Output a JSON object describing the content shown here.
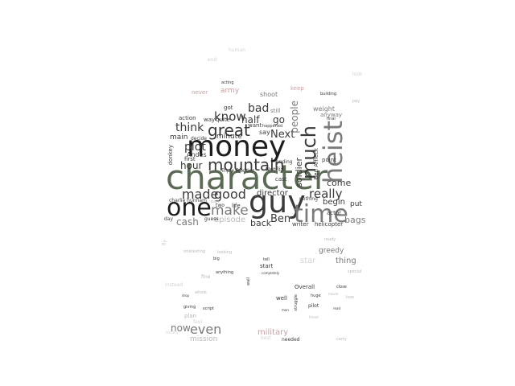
{
  "palette": {
    "darkest": "#1c1c1c",
    "dark": "#3a3a3a",
    "mid_green": "#5a6a55",
    "gray": "#7a7a7a",
    "light": "#b8b8b8",
    "pale": "#d4d0d0",
    "pink": "#c8a0a0"
  },
  "words": [
    {
      "text": "money",
      "tone": "darkest"
    },
    {
      "text": "character",
      "tone": "mid_green"
    },
    {
      "text": "guy",
      "tone": "dark"
    },
    {
      "text": "one",
      "tone": "darkest"
    },
    {
      "text": "time",
      "tone": "gray"
    },
    {
      "text": "heist",
      "tone": "gray"
    },
    {
      "text": "much",
      "tone": "dark"
    },
    {
      "text": "mountain",
      "tone": "dark"
    },
    {
      "text": "great",
      "tone": "dark"
    },
    {
      "text": "make",
      "tone": "gray"
    },
    {
      "text": "made",
      "tone": "dark"
    },
    {
      "text": "good",
      "tone": "dark"
    },
    {
      "text": "really",
      "tone": "dark"
    },
    {
      "text": "know",
      "tone": "dark"
    },
    {
      "text": "think",
      "tone": "dark"
    },
    {
      "text": "plot",
      "tone": "dark"
    },
    {
      "text": "bad",
      "tone": "dark"
    },
    {
      "text": "Next",
      "tone": "dark"
    },
    {
      "text": "half",
      "tone": "dark"
    },
    {
      "text": "go",
      "tone": "dark"
    },
    {
      "text": "people",
      "tone": "gray"
    },
    {
      "text": "soldier",
      "tone": "dark"
    },
    {
      "text": "hour",
      "tone": "dark"
    },
    {
      "text": "director",
      "tone": "dark"
    },
    {
      "text": "Ben",
      "tone": "dark"
    },
    {
      "text": "cash",
      "tone": "gray"
    },
    {
      "text": "episode",
      "tone": "light"
    },
    {
      "text": "back",
      "tone": "dark"
    },
    {
      "text": "bags",
      "tone": "gray"
    },
    {
      "text": "come",
      "tone": "dark"
    },
    {
      "text": "begin",
      "tone": "dark"
    },
    {
      "text": "put",
      "tone": "dark"
    },
    {
      "text": "even",
      "tone": "gray"
    },
    {
      "text": "now",
      "tone": "gray"
    },
    {
      "text": "mission",
      "tone": "light"
    },
    {
      "text": "thing",
      "tone": "gray"
    },
    {
      "text": "star",
      "tone": "pale"
    },
    {
      "text": "greedy",
      "tone": "gray"
    },
    {
      "text": "military",
      "tone": "pink"
    },
    {
      "text": "army",
      "tone": "pink"
    },
    {
      "text": "shoot",
      "tone": "gray"
    },
    {
      "text": "weight",
      "tone": "gray"
    },
    {
      "text": "anyway",
      "tone": "gray"
    },
    {
      "text": "main",
      "tone": "dark"
    },
    {
      "text": "minute",
      "tone": "dark"
    },
    {
      "text": "Andes",
      "tone": "dark"
    },
    {
      "text": "action",
      "tone": "dark"
    },
    {
      "text": "way",
      "tone": "dark"
    },
    {
      "text": "quite",
      "tone": "dark"
    },
    {
      "text": "want",
      "tone": "dark"
    },
    {
      "text": "say",
      "tone": "dark"
    },
    {
      "text": "still",
      "tone": "gray"
    },
    {
      "text": "got",
      "tone": "dark"
    },
    {
      "text": "first",
      "tone": "dark"
    },
    {
      "text": "decide",
      "tone": "dark"
    },
    {
      "text": "donkey",
      "tone": "dark"
    },
    {
      "text": "charlie hunnam",
      "tone": "dark"
    },
    {
      "text": "life",
      "tone": "dark"
    },
    {
      "text": "two",
      "tone": "dark"
    },
    {
      "text": "day",
      "tone": "dark"
    },
    {
      "text": "guess",
      "tone": "dark"
    },
    {
      "text": "actor",
      "tone": "dark"
    },
    {
      "text": "nothing",
      "tone": "dark"
    },
    {
      "text": "writer",
      "tone": "dark"
    },
    {
      "text": "helicopter",
      "tone": "dark"
    },
    {
      "text": "Netflix",
      "tone": "dark"
    },
    {
      "text": "ending",
      "tone": "dark"
    },
    {
      "text": "cast",
      "tone": "dark"
    },
    {
      "text": "Triple Frontier",
      "tone": "dark"
    },
    {
      "text": "point",
      "tone": "dark"
    },
    {
      "text": "Ben Affleck",
      "tone": "dark"
    },
    {
      "text": "Overall",
      "tone": "dark"
    },
    {
      "text": "start",
      "tone": "dark"
    },
    {
      "text": "well",
      "tone": "dark"
    },
    {
      "text": "pilot",
      "tone": "dark"
    },
    {
      "text": "plan",
      "tone": "light"
    },
    {
      "text": "keep",
      "tone": "pink"
    },
    {
      "text": "never",
      "tone": "pink"
    },
    {
      "text": "acting",
      "tone": "dark"
    },
    {
      "text": "building",
      "tone": "dark"
    },
    {
      "text": "happened",
      "tone": "dark"
    },
    {
      "text": "final",
      "tone": "dark"
    },
    {
      "text": "part",
      "tone": "light"
    },
    {
      "text": "look",
      "tone": "pale"
    },
    {
      "text": "human",
      "tone": "pale"
    },
    {
      "text": "end",
      "tone": "pale"
    },
    {
      "text": "fly",
      "tone": "pale"
    },
    {
      "text": "instead",
      "tone": "pale"
    },
    {
      "text": "feel",
      "tone": "pale"
    },
    {
      "text": "totally",
      "tone": "pale"
    },
    {
      "text": "needed",
      "tone": "dark"
    },
    {
      "text": "best",
      "tone": "pale"
    },
    {
      "text": "interesting",
      "tone": "light"
    },
    {
      "text": "looking",
      "tone": "light"
    },
    {
      "text": "big",
      "tone": "dark"
    },
    {
      "text": "anything",
      "tone": "dark"
    },
    {
      "text": "wall",
      "tone": "dark"
    },
    {
      "text": "tell",
      "tone": "dark"
    },
    {
      "text": "completely",
      "tone": "dark"
    },
    {
      "text": "giving",
      "tone": "dark"
    },
    {
      "text": "script",
      "tone": "dark"
    },
    {
      "text": "drop",
      "tone": "dark"
    },
    {
      "text": "whole",
      "tone": "light"
    },
    {
      "text": "close",
      "tone": "dark"
    },
    {
      "text": "read",
      "tone": "dark"
    },
    {
      "text": "man",
      "tone": "dark"
    },
    {
      "text": "struggle",
      "tone": "dark"
    },
    {
      "text": "huge",
      "tone": "dark"
    },
    {
      "text": "movie",
      "tone": "light"
    },
    {
      "text": "lose",
      "tone": "light"
    },
    {
      "text": "carry",
      "tone": "light"
    },
    {
      "text": "friend",
      "tone": "light"
    },
    {
      "text": "fine",
      "tone": "light"
    },
    {
      "text": "special",
      "tone": "light"
    },
    {
      "text": "ready",
      "tone": "light"
    },
    {
      "text": "pay",
      "tone": "light"
    }
  ]
}
